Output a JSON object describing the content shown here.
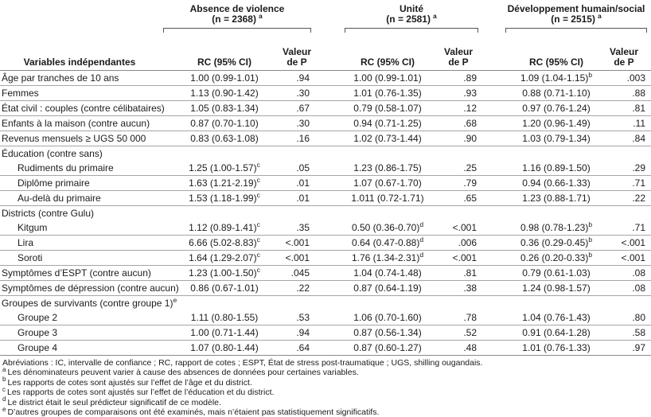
{
  "table": {
    "header": {
      "variables_label": "Variables indépendantes",
      "rc_label": "RC (95% CI)",
      "p_label": "Valeur de P",
      "groups": [
        {
          "title": "Absence de violence",
          "n": "(n = 2368)",
          "sup": "a"
        },
        {
          "title": "Unité",
          "n": "(n = 2581)",
          "sup": "a"
        },
        {
          "title": "Développement humain/social",
          "n": "(n = 2515)",
          "sup": "a"
        }
      ]
    },
    "rows": [
      {
        "label": "Âge par tranches de 10 ans",
        "group": false,
        "indent": false,
        "sup": "",
        "cells": [
          {
            "rc": "1.00 (0.99-1.01)",
            "sup": "",
            "p": ".94"
          },
          {
            "rc": "1.00 (0.99-1.01)",
            "sup": "",
            "p": ".89"
          },
          {
            "rc": "1.09 (1.04-1.15)",
            "sup": "b",
            "p": ".003"
          }
        ]
      },
      {
        "label": "Femmes",
        "group": false,
        "indent": false,
        "sup": "",
        "cells": [
          {
            "rc": "1.13 (0.90-1.42)",
            "sup": "",
            "p": ".30"
          },
          {
            "rc": "1.01 (0.76-1.35)",
            "sup": "",
            "p": ".93"
          },
          {
            "rc": "0.88 (0.71-1.10)",
            "sup": "",
            "p": ".88"
          }
        ]
      },
      {
        "label": "État civil : couples (contre célibataires)",
        "group": false,
        "indent": false,
        "sup": "",
        "cells": [
          {
            "rc": "1.05 (0.83-1.34)",
            "sup": "",
            "p": ".67"
          },
          {
            "rc": "0.79 (0.58-1.07)",
            "sup": "",
            "p": ".12"
          },
          {
            "rc": "0.97 (0.76-1.24)",
            "sup": "",
            "p": ".81"
          }
        ]
      },
      {
        "label": "Enfants à la maison (contre aucun)",
        "group": false,
        "indent": false,
        "sup": "",
        "cells": [
          {
            "rc": "0.87 (0.70-1.10)",
            "sup": "",
            "p": ".30"
          },
          {
            "rc": "0.94 (0.71-1.25)",
            "sup": "",
            "p": ".68"
          },
          {
            "rc": "1.20 (0.96-1.49)",
            "sup": "",
            "p": ".11"
          }
        ]
      },
      {
        "label": "Revenus mensuels ≥ UGS 50 000",
        "group": false,
        "indent": false,
        "sup": "",
        "cells": [
          {
            "rc": "0.83 (0.63-1.08)",
            "sup": "",
            "p": ".16"
          },
          {
            "rc": "1.02 (0.73-1.44)",
            "sup": "",
            "p": ".90"
          },
          {
            "rc": "1.03 (0.79-1.34)",
            "sup": "",
            "p": ".84"
          }
        ]
      },
      {
        "label": "Éducation (contre sans)",
        "group": true,
        "indent": false,
        "sup": "",
        "cells": []
      },
      {
        "label": "Rudiments du primaire",
        "group": false,
        "indent": true,
        "sup": "",
        "cells": [
          {
            "rc": "1.25 (1.00-1.57)",
            "sup": "c",
            "p": ".05"
          },
          {
            "rc": "1.23 (0.86-1.75)",
            "sup": "",
            "p": ".25"
          },
          {
            "rc": "1.16 (0.89-1.50)",
            "sup": "",
            "p": ".29"
          }
        ]
      },
      {
        "label": "Diplôme primaire",
        "group": false,
        "indent": true,
        "sup": "",
        "cells": [
          {
            "rc": "1.63 (1.21-2.19)",
            "sup": "c",
            "p": ".01"
          },
          {
            "rc": "1.07 (0.67-1.70)",
            "sup": "",
            "p": ".79"
          },
          {
            "rc": "0.94 (0.66-1.33)",
            "sup": "",
            "p": ".71"
          }
        ]
      },
      {
        "label": "Au-delà du primaire",
        "group": false,
        "indent": true,
        "sup": "",
        "cells": [
          {
            "rc": "1.53 (1.18-1.99)",
            "sup": "c",
            "p": ".01"
          },
          {
            "rc": "1.011 (0.72-1.71)",
            "sup": "",
            "p": ".65"
          },
          {
            "rc": "1.23 (0.88-1.71)",
            "sup": "",
            "p": ".22"
          }
        ]
      },
      {
        "label": "Districts (contre Gulu)",
        "group": true,
        "indent": false,
        "sup": "",
        "cells": []
      },
      {
        "label": "Kitgum",
        "group": false,
        "indent": true,
        "sup": "",
        "cells": [
          {
            "rc": "1.12 (0.89-1.41)",
            "sup": "c",
            "p": ".35"
          },
          {
            "rc": "0.50 (0.36-0.70)",
            "sup": "d",
            "p": "<.001"
          },
          {
            "rc": "0.98 (0.78-1.23)",
            "sup": "b",
            "p": ".71"
          }
        ]
      },
      {
        "label": "Lira",
        "group": false,
        "indent": true,
        "sup": "",
        "cells": [
          {
            "rc": "6.66 (5.02-8.83)",
            "sup": "c",
            "p": "<.001"
          },
          {
            "rc": "0.64 (0.47-0.88)",
            "sup": "d",
            "p": ".006"
          },
          {
            "rc": "0.36 (0.29-0.45)",
            "sup": "b",
            "p": "<.001"
          }
        ]
      },
      {
        "label": "Soroti",
        "group": false,
        "indent": true,
        "sup": "",
        "cells": [
          {
            "rc": "1.64 (1.29-2.07)",
            "sup": "c",
            "p": "<.001"
          },
          {
            "rc": "1.76 (1.34-2.31)",
            "sup": "d",
            "p": "<.001"
          },
          {
            "rc": "0.26 (0.20-0.33)",
            "sup": "b",
            "p": "<.001"
          }
        ]
      },
      {
        "label": "Symptômes d’ESPT (contre aucun)",
        "group": false,
        "indent": false,
        "sup": "",
        "cells": [
          {
            "rc": "1.23 (1.00-1.50)",
            "sup": "c",
            "p": ".045"
          },
          {
            "rc": "1.04 (0.74-1.48)",
            "sup": "",
            "p": ".81"
          },
          {
            "rc": "0.79 (0.61-1.03)",
            "sup": "",
            "p": ".08"
          }
        ]
      },
      {
        "label": "Symptômes de dépression (contre aucun)",
        "group": false,
        "indent": false,
        "sup": "",
        "cells": [
          {
            "rc": "0.86 (0.67-1.01)",
            "sup": "",
            "p": ".22"
          },
          {
            "rc": "0.87 (0.64-1.19)",
            "sup": "",
            "p": ".38"
          },
          {
            "rc": "1.24 (0.98-1.57)",
            "sup": "",
            "p": ".08"
          }
        ]
      },
      {
        "label": "Groupes de survivants (contre groupe 1)",
        "group": true,
        "indent": false,
        "sup": "e",
        "cells": []
      },
      {
        "label": "Groupe 2",
        "group": false,
        "indent": true,
        "sup": "",
        "cells": [
          {
            "rc": "1.11 (0.80-1.55)",
            "sup": "",
            "p": ".53"
          },
          {
            "rc": "1.06 (0.70-1.60)",
            "sup": "",
            "p": ".78"
          },
          {
            "rc": "1.04 (0.76-1.43)",
            "sup": "",
            "p": ".80"
          }
        ]
      },
      {
        "label": "Groupe 3",
        "group": false,
        "indent": true,
        "sup": "",
        "cells": [
          {
            "rc": "1.00 (0.71-1.44)",
            "sup": "",
            "p": ".94"
          },
          {
            "rc": "0.87 (0.56-1.34)",
            "sup": "",
            "p": ".52"
          },
          {
            "rc": "0.91 (0.64-1.28)",
            "sup": "",
            "p": ".58"
          }
        ]
      },
      {
        "label": "Groupe 4",
        "group": false,
        "indent": true,
        "sup": "",
        "cells": [
          {
            "rc": "1.07 (0.80-1.44)",
            "sup": "",
            "p": ".64"
          },
          {
            "rc": "0.87 (0.60-1.27)",
            "sup": "",
            "p": ".48"
          },
          {
            "rc": "1.01 (0.76-1.33)",
            "sup": "",
            "p": ".97"
          }
        ]
      }
    ],
    "footnotes": [
      {
        "marker": "",
        "text": "Abréviations : IC, intervalle de confiance ; RC, rapport de cotes ; ESPT, État de stress post-traumatique ; UGS, shilling ougandais."
      },
      {
        "marker": "a",
        "text": "Les dénominateurs peuvent varier à cause des absences de données pour certaines variables."
      },
      {
        "marker": "b",
        "text": "Les rapports de cotes sont ajustés sur l’effet de l’âge et du district."
      },
      {
        "marker": "c",
        "text": "Les rapports de cotes sont ajustés sur l’effet de l’éducation et du district."
      },
      {
        "marker": "d",
        "text": "Le district était le seul prédicteur significatif de ce modèle."
      },
      {
        "marker": "e",
        "text": "D’autres groupes de comparaisons ont été examinés, mais n’étaient pas statistiquement significatifs."
      }
    ],
    "colors": {
      "text": "#1b1b1b",
      "row_line": "#a6a6a6",
      "header_rule": "#8a8a8a",
      "bracket": "#555555",
      "background": "#ffffff"
    }
  }
}
